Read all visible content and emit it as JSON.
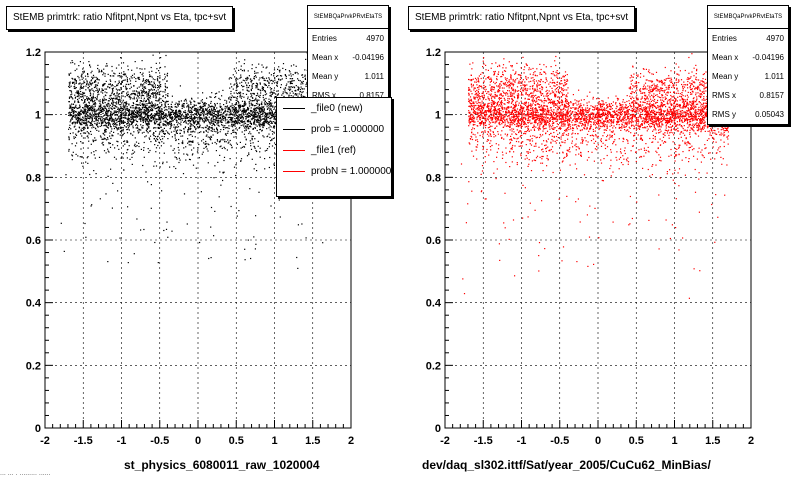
{
  "pads": [
    {
      "title": "StEMB primtrk: ratio Nfitpnt,Npnt vs Eta, tpc+svt",
      "xname": "st_physics_6080011_raw_1020004",
      "stats": {
        "header": "StEMBQaPrvkPRvtEtaTS",
        "rows": [
          {
            "label": "Entries",
            "value": "4970"
          },
          {
            "label": "Mean x",
            "value": "-0.04196"
          },
          {
            "label": "Mean y",
            "value": "1.011"
          },
          {
            "label": "RMS x",
            "value": "0.8157"
          }
        ]
      },
      "legend": {
        "entries": [
          {
            "label": "_file0 (new)",
            "color": "#000000"
          },
          {
            "label": "prob = 1.000000",
            "color": "#000000"
          },
          {
            "label": "_file1 (ref)",
            "color": "#ff0000"
          },
          {
            "label": "probN = 1.000000",
            "color": "#ff0000"
          }
        ]
      }
    },
    {
      "title": "StEMB primtrk: ratio Nfitpnt,Npnt vs Eta, tpc+svt",
      "xname": "dev/daq_sl302.ittf/Sat/year_2005/CuCu62_MinBias/",
      "stats": {
        "header": "StEMBQaPrvkPRvtEtaTS",
        "rows": [
          {
            "label": "Entries",
            "value": "4970"
          },
          {
            "label": "Mean x",
            "value": "-0.04196"
          },
          {
            "label": "Mean y",
            "value": "1.011"
          },
          {
            "label": "RMS x",
            "value": "0.8157"
          },
          {
            "label": "RMS y",
            "value": "0.05043"
          }
        ]
      }
    }
  ],
  "footer": "... ... . ......... ......",
  "chart_data": [
    {
      "type": "scatter",
      "title": "StEMB primtrk: ratio Nfitpnt,Npnt vs Eta, tpc+svt",
      "xlabel": "st_physics_6080011_raw_1020004",
      "ylabel": "",
      "xlim": [
        -2,
        2
      ],
      "ylim": [
        0,
        1.2
      ],
      "x_ticks": [
        "-2",
        "-1.5",
        "-1",
        "-0.5",
        "0",
        "0.5",
        "1",
        "1.5",
        "2"
      ],
      "y_ticks": [
        "0",
        "0.2",
        "0.4",
        "0.6",
        "0.8",
        "1",
        "1.2"
      ],
      "grid": true,
      "marker_color": "#000000",
      "series": [
        {
          "entries": 4970,
          "mean_x": -0.04196,
          "mean_y": 1.011,
          "rms_x": 0.8157,
          "rms_y": 0.05043,
          "bands": [
            {
              "x_range": [
                -1.7,
                1.7
              ],
              "y_center": 1.0,
              "y_spread": 0.025,
              "fraction": 0.55
            },
            {
              "x_range": [
                -1.7,
                -0.4
              ],
              "y_center": 1.08,
              "y_spread": 0.04,
              "fraction": 0.15
            },
            {
              "x_range": [
                0.4,
                1.7
              ],
              "y_center": 1.08,
              "y_spread": 0.04,
              "fraction": 0.12
            },
            {
              "x_range": [
                -1.7,
                1.7
              ],
              "y_center": 0.93,
              "y_spread": 0.05,
              "fraction": 0.16
            },
            {
              "x_range": [
                -1.8,
                1.7
              ],
              "y_center": 0.72,
              "y_spread": 0.12,
              "fraction": 0.02
            }
          ]
        }
      ]
    },
    {
      "type": "scatter",
      "title": "StEMB primtrk: ratio Nfitpnt,Npnt vs Eta, tpc+svt",
      "xlabel": "dev/daq_sl302.ittf/Sat/year_2005/CuCu62_MinBias/",
      "ylabel": "",
      "xlim": [
        -2,
        2
      ],
      "ylim": [
        0,
        1.2
      ],
      "x_ticks": [
        "-2",
        "-1.5",
        "-1",
        "-0.5",
        "0",
        "0.5",
        "1",
        "1.5",
        "2"
      ],
      "y_ticks": [
        "0",
        "0.2",
        "0.4",
        "0.6",
        "0.8",
        "1",
        "1.2"
      ],
      "grid": true,
      "marker_color": "#ff0000",
      "series": [
        {
          "entries": 4970,
          "mean_x": -0.04196,
          "mean_y": 1.011,
          "rms_x": 0.8157,
          "rms_y": 0.05043,
          "bands": [
            {
              "x_range": [
                -1.7,
                1.7
              ],
              "y_center": 1.0,
              "y_spread": 0.025,
              "fraction": 0.55
            },
            {
              "x_range": [
                -1.7,
                -0.4
              ],
              "y_center": 1.08,
              "y_spread": 0.04,
              "fraction": 0.15
            },
            {
              "x_range": [
                0.4,
                1.7
              ],
              "y_center": 1.08,
              "y_spread": 0.04,
              "fraction": 0.12
            },
            {
              "x_range": [
                -1.7,
                1.7
              ],
              "y_center": 0.93,
              "y_spread": 0.05,
              "fraction": 0.16
            },
            {
              "x_range": [
                -1.8,
                1.7
              ],
              "y_center": 0.72,
              "y_spread": 0.12,
              "fraction": 0.02
            }
          ]
        }
      ]
    }
  ]
}
